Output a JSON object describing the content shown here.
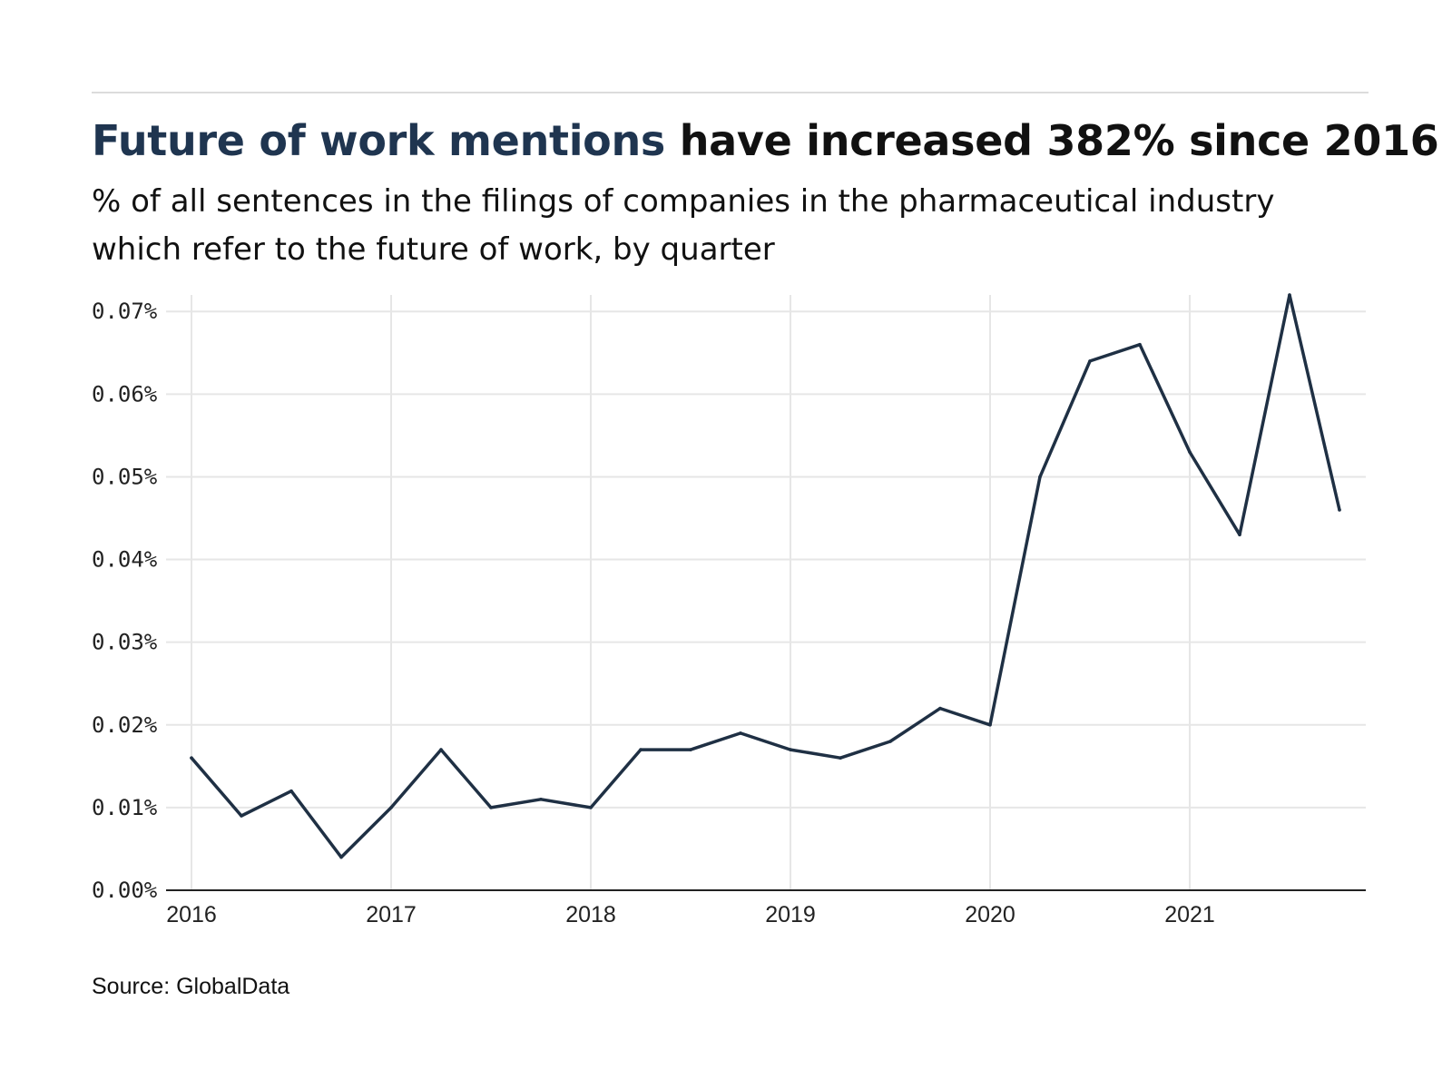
{
  "headline": {
    "highlight": "Future of work mentions",
    "rest": "have increased 382% since 2016"
  },
  "subtitle": {
    "line1": "% of all sentences in the filings of companies in the pharmaceutical industry",
    "line2": "which refer to the future of work, by quarter"
  },
  "source": "Source: GlobalData",
  "colors": {
    "line": "#1f3044",
    "highlight": "#1f3550",
    "grid": "#e6e6e6",
    "axis": "#222222"
  },
  "chart_data": {
    "type": "line",
    "title": "",
    "xlabel": "",
    "ylabel": "",
    "x": [
      2016.0,
      2016.25,
      2016.5,
      2016.75,
      2017.0,
      2017.25,
      2017.5,
      2017.75,
      2018.0,
      2018.25,
      2018.5,
      2018.75,
      2019.0,
      2019.25,
      2019.5,
      2019.75,
      2020.0,
      2020.25,
      2020.5,
      2020.75,
      2021.0,
      2021.25,
      2021.5,
      2021.75
    ],
    "series": [
      {
        "values": [
          0.016,
          0.009,
          0.012,
          0.004,
          0.01,
          0.017,
          0.01,
          0.011,
          0.01,
          0.017,
          0.017,
          0.019,
          0.017,
          0.016,
          0.018,
          0.022,
          0.02,
          0.05,
          0.064,
          0.066,
          0.053,
          0.043,
          0.072,
          0.046
        ]
      }
    ],
    "xlim": [
      2016.0,
      2021.75
    ],
    "ylim": [
      0,
      0.072
    ],
    "x_ticks": [
      2016,
      2017,
      2018,
      2019,
      2020,
      2021
    ],
    "x_tick_labels": [
      "2016",
      "2017",
      "2018",
      "2019",
      "2020",
      "2021"
    ],
    "y_ticks": [
      0.0,
      0.01,
      0.02,
      0.03,
      0.04,
      0.05,
      0.06,
      0.07
    ],
    "y_tick_labels": [
      "0.00%",
      "0.01%",
      "0.02%",
      "0.03%",
      "0.04%",
      "0.05%",
      "0.06%",
      "0.07%"
    ],
    "grid": true,
    "legend": "none"
  }
}
